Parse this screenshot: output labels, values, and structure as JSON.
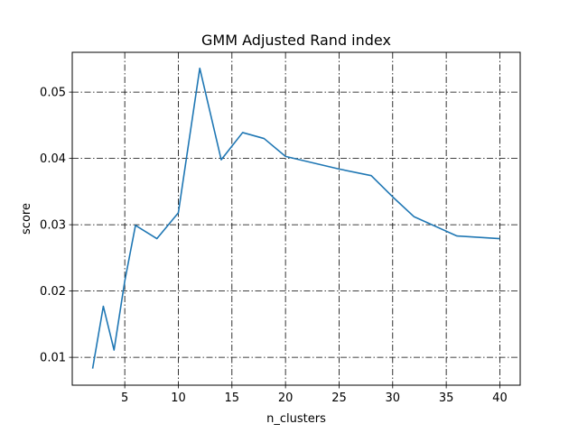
{
  "chart_data": {
    "type": "line",
    "title": "GMM Adjusted Rand index",
    "xlabel": "n_clusters",
    "ylabel": "score",
    "xlim": [
      0.1,
      41.9
    ],
    "ylim": [
      0.0058,
      0.056
    ],
    "xticks": [
      5,
      10,
      15,
      20,
      25,
      30,
      35,
      40
    ],
    "yticks": [
      0.01,
      0.02,
      0.03,
      0.04,
      0.05
    ],
    "ytick_labels": [
      "0.01",
      "0.02",
      "0.03",
      "0.04",
      "0.05"
    ],
    "grid": true,
    "grid_style": "dash-dot",
    "colors": {
      "line": "#1f77b4",
      "grid": "#000000",
      "axes": "#000000"
    },
    "series": [
      {
        "x": [
          2,
          3,
          4,
          5,
          6,
          8,
          10,
          12,
          14,
          16,
          18,
          20,
          25,
          28,
          30,
          32,
          36,
          40
        ],
        "values": [
          0.0083,
          0.0177,
          0.0111,
          0.0215,
          0.0299,
          0.0279,
          0.0318,
          0.0536,
          0.0398,
          0.0439,
          0.043,
          0.0403,
          0.0384,
          0.0374,
          0.0342,
          0.0312,
          0.0283,
          0.0279
        ]
      }
    ]
  }
}
